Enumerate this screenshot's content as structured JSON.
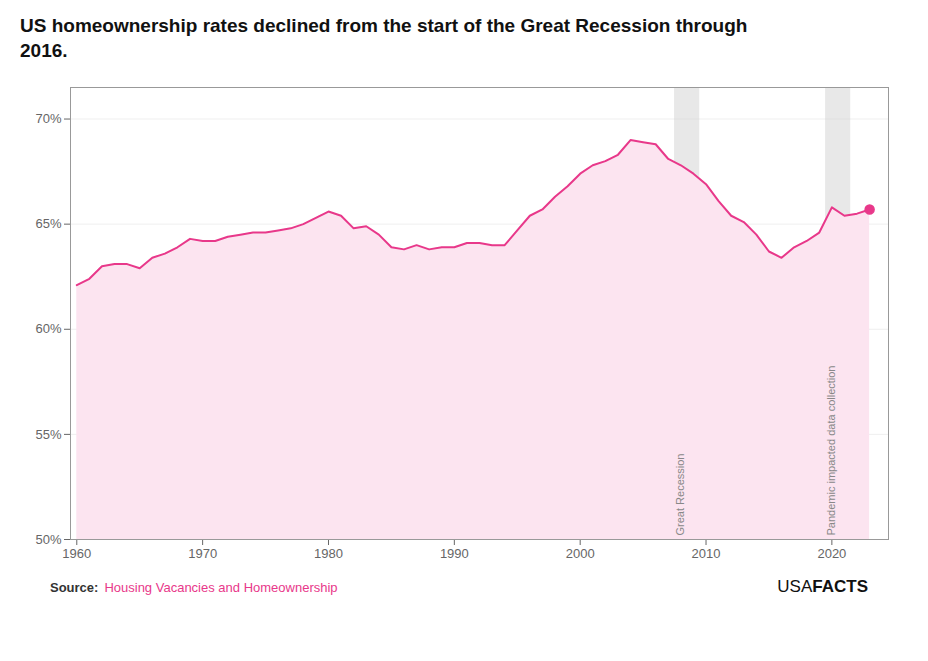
{
  "chart_data": {
    "type": "area",
    "title": "US homeownership rates declined from the start of the Great Recession through 2016.",
    "source": {
      "label": "Source:",
      "text": "Housing Vacancies and Homeownership",
      "color": "#e8388a"
    },
    "brand": [
      "USA",
      "FACTS"
    ],
    "x": [
      1960,
      1961,
      1962,
      1963,
      1964,
      1965,
      1966,
      1967,
      1968,
      1969,
      1970,
      1971,
      1972,
      1973,
      1974,
      1975,
      1976,
      1977,
      1978,
      1979,
      1980,
      1981,
      1982,
      1983,
      1984,
      1985,
      1986,
      1987,
      1988,
      1989,
      1990,
      1991,
      1992,
      1993,
      1994,
      1995,
      1996,
      1997,
      1998,
      1999,
      2000,
      2001,
      2002,
      2003,
      2004,
      2005,
      2006,
      2007,
      2008,
      2009,
      2010,
      2011,
      2012,
      2013,
      2014,
      2015,
      2016,
      2017,
      2018,
      2019,
      2020,
      2021,
      2022,
      2023
    ],
    "values": [
      62.1,
      62.4,
      63.0,
      63.1,
      63.1,
      62.9,
      63.4,
      63.6,
      63.9,
      64.3,
      64.2,
      64.2,
      64.4,
      64.5,
      64.6,
      64.6,
      64.7,
      64.8,
      65.0,
      65.3,
      65.6,
      65.4,
      64.8,
      64.9,
      64.5,
      63.9,
      63.8,
      64.0,
      63.8,
      63.9,
      63.9,
      64.1,
      64.1,
      64.0,
      64.0,
      64.7,
      65.4,
      65.7,
      66.3,
      66.8,
      67.4,
      67.8,
      68.0,
      68.3,
      69.0,
      68.9,
      68.8,
      68.1,
      67.8,
      67.4,
      66.9,
      66.1,
      65.4,
      65.1,
      64.5,
      63.7,
      63.4,
      63.9,
      64.2,
      64.6,
      65.8,
      65.4,
      65.5,
      65.7
    ],
    "color": "#e8388a",
    "fill_color": "#fce4f0",
    "endpoint": {
      "x": 2023,
      "value": 65.7
    },
    "bands": [
      {
        "label": "Great Recession",
        "start": 2007.5,
        "end": 2009.5,
        "color": "#cccccc"
      },
      {
        "label": "Pandemic impacted data collection",
        "start": 2019.5,
        "end": 2021.5,
        "color": "#cccccc"
      }
    ],
    "xlim": [
      1959.5,
      2024.5
    ],
    "xticks": [
      1960,
      1970,
      1980,
      1990,
      2000,
      2010,
      2020
    ],
    "ylim": [
      50,
      71.5
    ],
    "yticks": [
      {
        "value": 50,
        "label": "50%"
      },
      {
        "value": 55,
        "label": "55%"
      },
      {
        "value": 60,
        "label": "60%"
      },
      {
        "value": 65,
        "label": "65%"
      },
      {
        "value": 70,
        "label": "70%"
      }
    ],
    "grid": true
  }
}
